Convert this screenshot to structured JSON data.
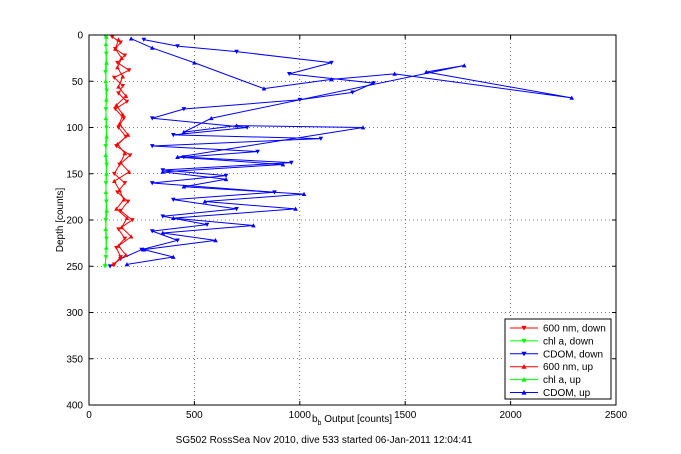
{
  "chart_data": {
    "type": "scatter",
    "title": "",
    "xlabel_main": "b",
    "xlabel_sub": "b",
    "xlabel_rest": " Output [counts]",
    "ylabel": "Depth [counts]",
    "caption": "SG502 RossSea Nov 2010, dive 533 started 06-Jan-2011 12:04:41",
    "xlim": [
      0,
      2500
    ],
    "ylim": [
      0,
      400
    ],
    "y_reversed": true,
    "grid": true,
    "legend_position": "bottom-right",
    "x_ticks": [
      "0",
      "500",
      "1000",
      "1500",
      "2000",
      "2500"
    ],
    "y_ticks": [
      "0",
      "50",
      "100",
      "150",
      "200",
      "250",
      "300",
      "350",
      "400"
    ],
    "series": [
      {
        "name": "600 nm, down",
        "color": "#ff0000",
        "marker": "down-triangle",
        "connected": true,
        "points": [
          [
            110,
            2
          ],
          [
            150,
            8
          ],
          [
            125,
            15
          ],
          [
            170,
            22
          ],
          [
            135,
            30
          ],
          [
            190,
            38
          ],
          [
            120,
            46
          ],
          [
            160,
            55
          ],
          [
            140,
            63
          ],
          [
            180,
            72
          ],
          [
            125,
            80
          ],
          [
            165,
            90
          ],
          [
            140,
            100
          ],
          [
            175,
            110
          ],
          [
            130,
            120
          ],
          [
            195,
            130
          ],
          [
            145,
            140
          ],
          [
            120,
            150
          ],
          [
            170,
            160
          ],
          [
            135,
            170
          ],
          [
            185,
            180
          ],
          [
            150,
            190
          ],
          [
            205,
            200
          ],
          [
            140,
            210
          ],
          [
            170,
            220
          ],
          [
            130,
            230
          ],
          [
            150,
            240
          ],
          [
            120,
            248
          ]
        ]
      },
      {
        "name": "chl a, down",
        "color": "#00ff00",
        "marker": "down-triangle",
        "connected": true,
        "points": [
          [
            80,
            2
          ],
          [
            82,
            20
          ],
          [
            78,
            40
          ],
          [
            84,
            60
          ],
          [
            80,
            80
          ],
          [
            83,
            100
          ],
          [
            79,
            120
          ],
          [
            84,
            140
          ],
          [
            80,
            160
          ],
          [
            82,
            180
          ],
          [
            79,
            200
          ],
          [
            83,
            220
          ],
          [
            80,
            240
          ],
          [
            76,
            250
          ]
        ]
      },
      {
        "name": "CDOM, down",
        "color": "#0000ff",
        "marker": "down-triangle",
        "connected": true,
        "points": [
          [
            260,
            5
          ],
          [
            420,
            12
          ],
          [
            700,
            18
          ],
          [
            1150,
            30
          ],
          [
            950,
            42
          ],
          [
            1350,
            52
          ],
          [
            1250,
            62
          ],
          [
            1000,
            70
          ],
          [
            450,
            80
          ],
          [
            300,
            90
          ],
          [
            750,
            100
          ],
          [
            400,
            108
          ],
          [
            1100,
            112
          ],
          [
            300,
            120
          ],
          [
            800,
            126
          ],
          [
            450,
            132
          ],
          [
            960,
            138
          ],
          [
            350,
            146
          ],
          [
            650,
            152
          ],
          [
            300,
            160
          ],
          [
            880,
            170
          ],
          [
            400,
            178
          ],
          [
            700,
            188
          ],
          [
            350,
            196
          ],
          [
            560,
            205
          ],
          [
            300,
            212
          ],
          [
            420,
            222
          ],
          [
            250,
            232
          ],
          [
            150,
            242
          ],
          [
            100,
            250
          ]
        ]
      },
      {
        "name": "600 nm, up",
        "color": "#ff0000",
        "marker": "up-triangle",
        "connected": true,
        "points": [
          [
            115,
            248
          ],
          [
            175,
            238
          ],
          [
            140,
            228
          ],
          [
            200,
            218
          ],
          [
            155,
            208
          ],
          [
            180,
            198
          ],
          [
            130,
            188
          ],
          [
            165,
            178
          ],
          [
            145,
            168
          ],
          [
            120,
            158
          ],
          [
            190,
            148
          ],
          [
            150,
            138
          ],
          [
            170,
            128
          ],
          [
            135,
            118
          ],
          [
            185,
            108
          ],
          [
            145,
            96
          ],
          [
            160,
            86
          ],
          [
            130,
            76
          ],
          [
            175,
            66
          ],
          [
            140,
            56
          ],
          [
            160,
            45
          ],
          [
            135,
            35
          ],
          [
            155,
            25
          ],
          [
            125,
            15
          ],
          [
            140,
            5
          ]
        ]
      },
      {
        "name": "chl a, up",
        "color": "#00ff00",
        "marker": "up-triangle",
        "connected": true,
        "points": [
          [
            78,
            248
          ],
          [
            82,
            230
          ],
          [
            79,
            210
          ],
          [
            84,
            190
          ],
          [
            80,
            170
          ],
          [
            83,
            150
          ],
          [
            79,
            130
          ],
          [
            84,
            110
          ],
          [
            80,
            90
          ],
          [
            82,
            70
          ],
          [
            79,
            50
          ],
          [
            83,
            30
          ],
          [
            80,
            10
          ],
          [
            82,
            2
          ]
        ]
      },
      {
        "name": "CDOM, up",
        "color": "#0000ff",
        "marker": "up-triangle",
        "connected": true,
        "points": [
          [
            180,
            248
          ],
          [
            400,
            240
          ],
          [
            260,
            232
          ],
          [
            600,
            222
          ],
          [
            350,
            214
          ],
          [
            780,
            206
          ],
          [
            400,
            198
          ],
          [
            980,
            188
          ],
          [
            550,
            180
          ],
          [
            1020,
            172
          ],
          [
            450,
            164
          ],
          [
            650,
            156
          ],
          [
            350,
            148
          ],
          [
            920,
            140
          ],
          [
            420,
            132
          ],
          [
            1300,
            100
          ],
          [
            700,
            98
          ],
          [
            450,
            105
          ],
          [
            580,
            90
          ],
          [
            1780,
            33
          ],
          [
            1600,
            40
          ],
          [
            2290,
            68
          ],
          [
            1450,
            42
          ],
          [
            1150,
            48
          ],
          [
            830,
            58
          ],
          [
            500,
            30
          ],
          [
            300,
            14
          ],
          [
            200,
            4
          ]
        ]
      }
    ]
  }
}
